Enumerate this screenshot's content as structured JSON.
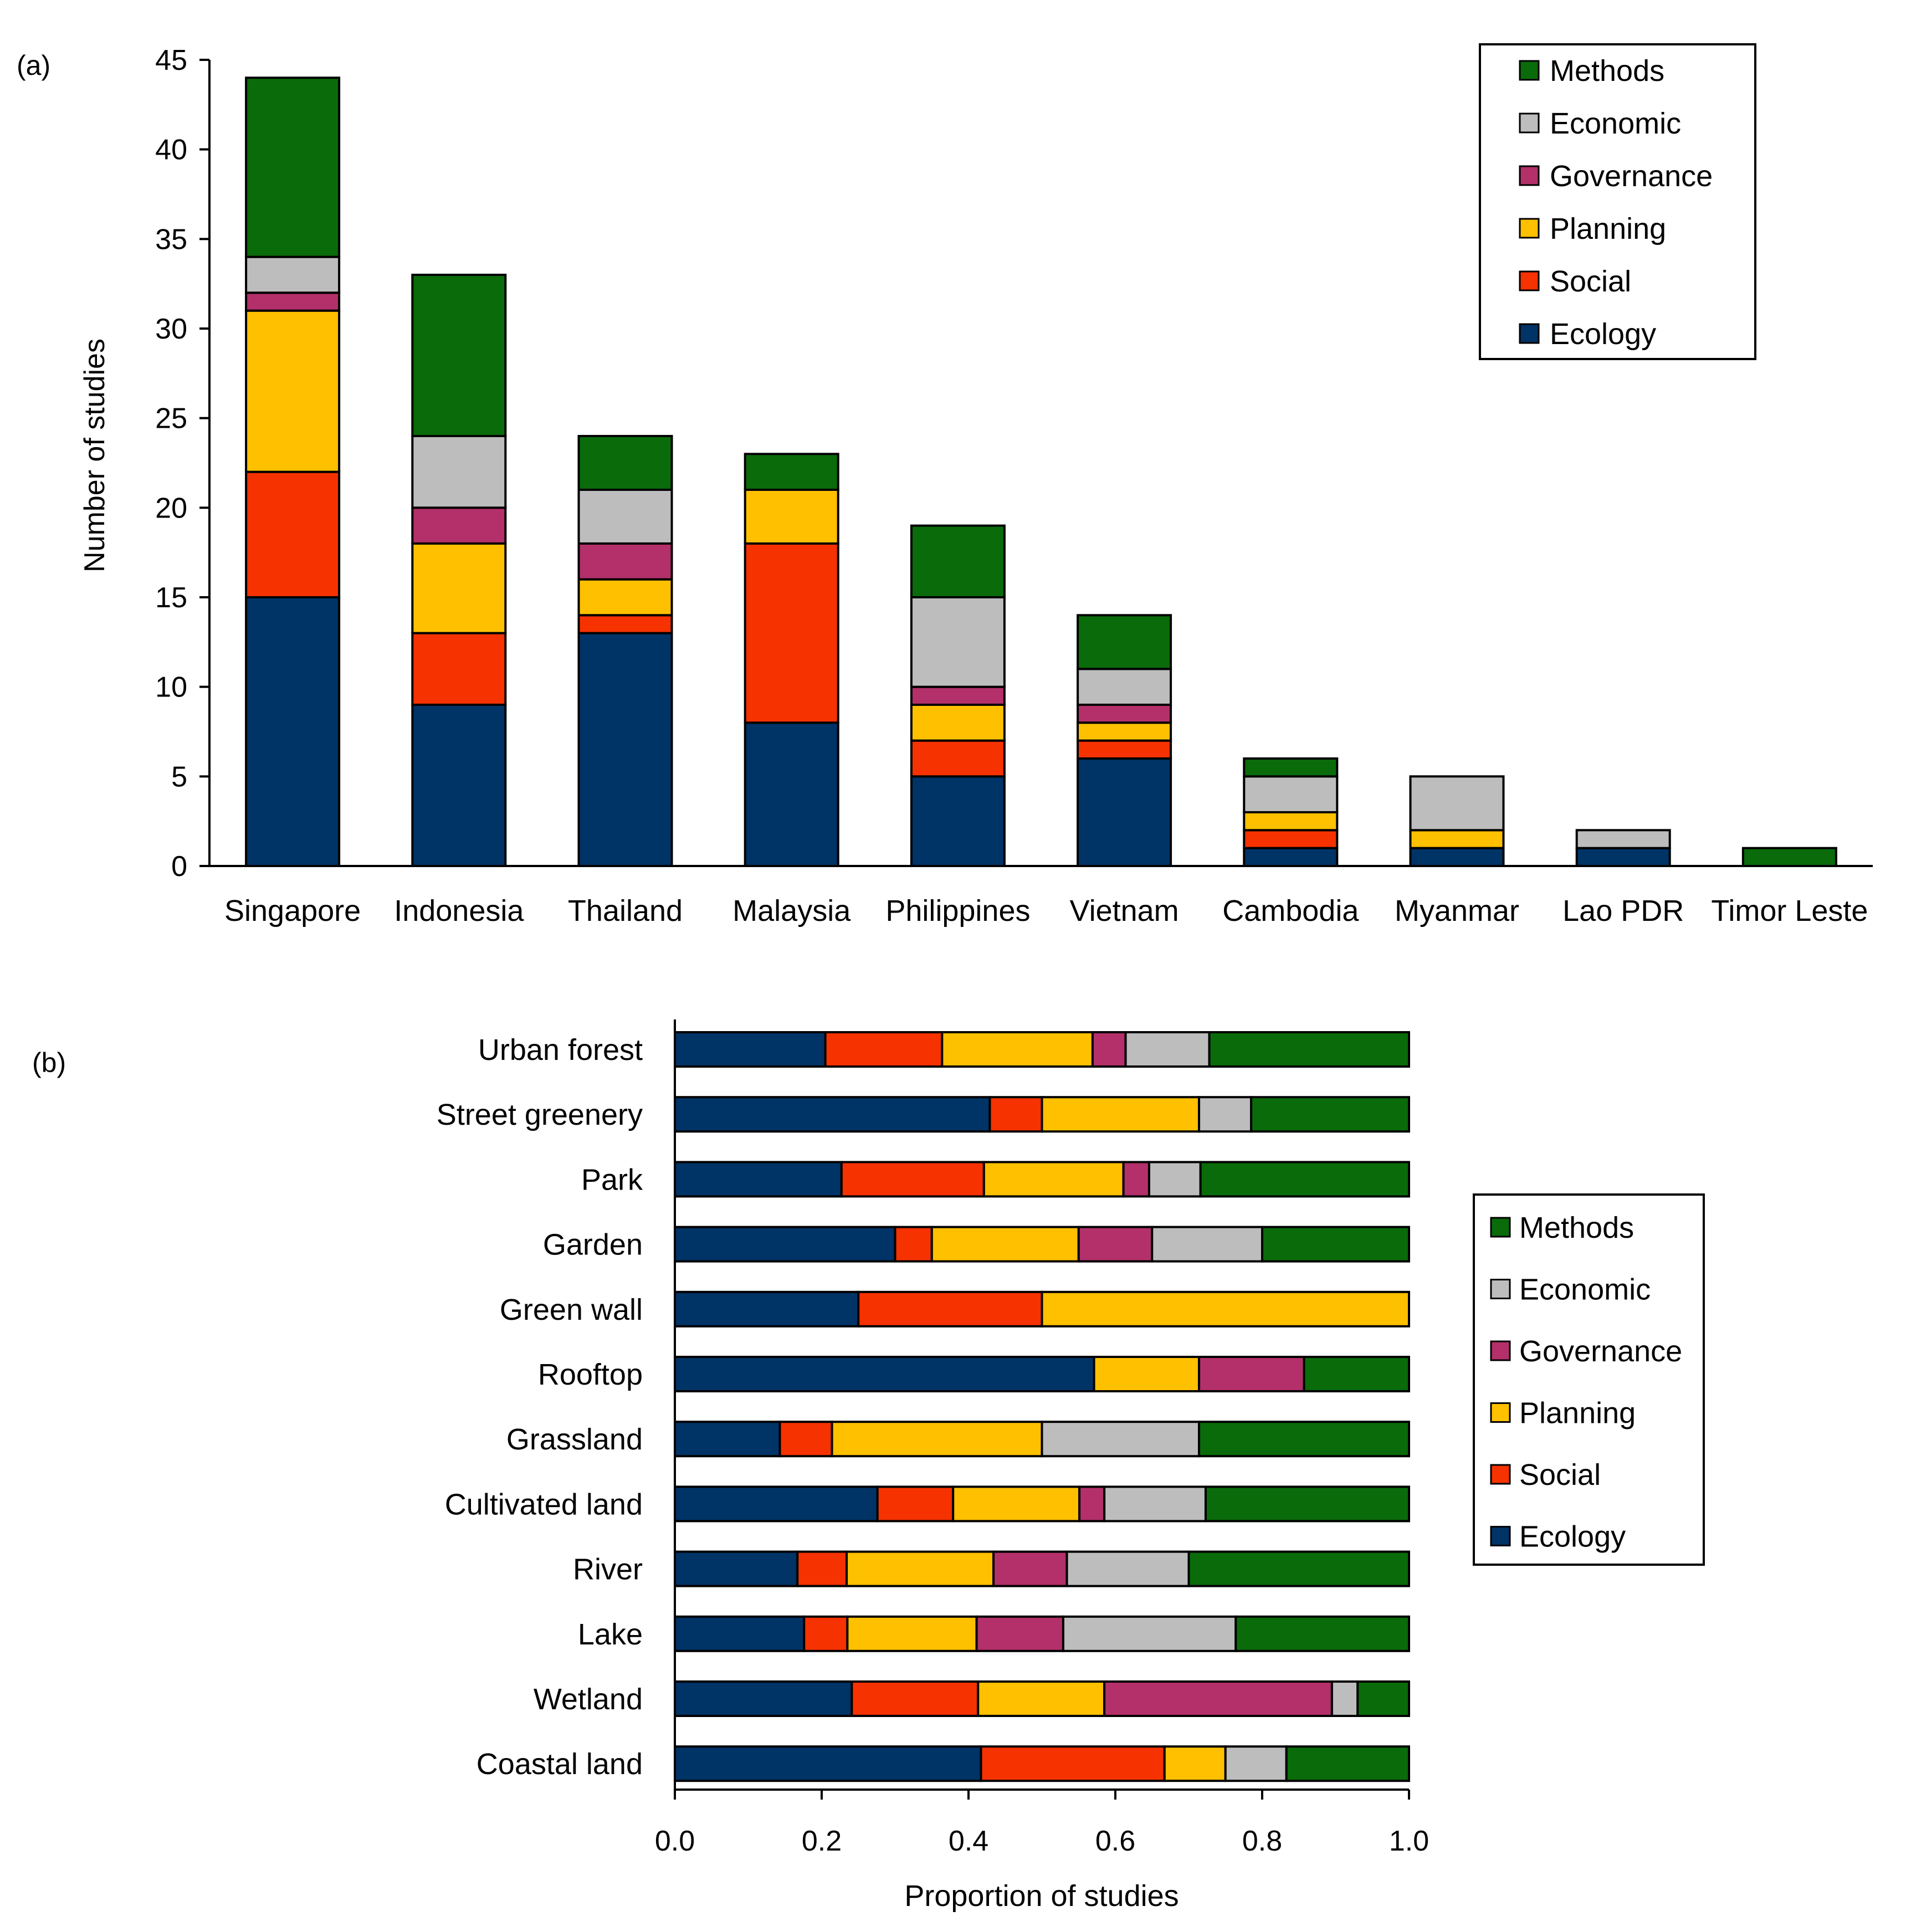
{
  "colors": {
    "Methods": "#0a6b0a",
    "Economic": "#bdbdbd",
    "Governance": "#b3306a",
    "Planning": "#ffc000",
    "Social": "#f53200",
    "Ecology": "#003366"
  },
  "chart_data": [
    {
      "type": "bar",
      "orientation": "vertical",
      "stacked": true,
      "panel_label": "(a)",
      "title": "",
      "xlabel": "",
      "ylabel": "Number of studies",
      "ylim": [
        0,
        45
      ],
      "yticks": [
        "0",
        "5",
        "10",
        "15",
        "20",
        "25",
        "30",
        "35",
        "40",
        "45"
      ],
      "categories": [
        "Singapore",
        "Indonesia",
        "Thailand",
        "Malaysia",
        "Philippines",
        "Vietnam",
        "Cambodia",
        "Myanmar",
        "Lao PDR",
        "Timor Leste"
      ],
      "series": [
        {
          "name": "Ecology",
          "values": [
            15,
            9,
            13,
            8,
            5,
            6,
            1,
            1,
            1,
            0
          ]
        },
        {
          "name": "Social",
          "values": [
            7,
            4,
            1,
            10,
            2,
            1,
            1,
            0,
            0,
            0
          ]
        },
        {
          "name": "Planning",
          "values": [
            9,
            5,
            2,
            3,
            2,
            1,
            1,
            1,
            0,
            0
          ]
        },
        {
          "name": "Governance",
          "values": [
            1,
            2,
            2,
            0,
            1,
            1,
            0,
            0,
            0,
            0
          ]
        },
        {
          "name": "Economic",
          "values": [
            2,
            4,
            3,
            0,
            5,
            2,
            2,
            3,
            1,
            0
          ]
        },
        {
          "name": "Methods",
          "values": [
            10,
            9,
            3,
            2,
            4,
            3,
            1,
            0,
            0,
            1
          ]
        }
      ],
      "legend": {
        "position": "top-right",
        "entries": [
          "Methods",
          "Economic",
          "Governance",
          "Planning",
          "Social",
          "Ecology"
        ]
      }
    },
    {
      "type": "bar",
      "orientation": "horizontal",
      "stacked": true,
      "panel_label": "(b)",
      "title": "",
      "xlabel": "Proportion of studies",
      "ylabel": "",
      "xlim": [
        0,
        1
      ],
      "xticks": [
        "0.0",
        "0.2",
        "0.4",
        "0.6",
        "0.8",
        "1.0"
      ],
      "categories": [
        "Urban forest",
        "Street greenery",
        "Park",
        "Garden",
        "Green wall",
        "Rooftop",
        "Grassland",
        "Cultivated land",
        "River",
        "Lake",
        "Wetland",
        "Coastal land"
      ],
      "series": [
        {
          "name": "Ecology",
          "values": [
            0.205,
            0.429,
            0.227,
            0.3,
            0.25,
            0.571,
            0.143,
            0.276,
            0.167,
            0.176,
            0.241,
            0.417
          ]
        },
        {
          "name": "Social",
          "values": [
            0.159,
            0.071,
            0.194,
            0.05,
            0.25,
            0.0,
            0.071,
            0.103,
            0.067,
            0.059,
            0.172,
            0.25
          ]
        },
        {
          "name": "Planning",
          "values": [
            0.205,
            0.214,
            0.19,
            0.2,
            0.5,
            0.143,
            0.286,
            0.172,
            0.2,
            0.176,
            0.172,
            0.083
          ]
        },
        {
          "name": "Governance",
          "values": [
            0.045,
            0.0,
            0.035,
            0.1,
            0.0,
            0.143,
            0.0,
            0.034,
            0.1,
            0.118,
            0.31,
            0.0
          ]
        },
        {
          "name": "Economic",
          "values": [
            0.114,
            0.071,
            0.07,
            0.15,
            0.0,
            0.0,
            0.214,
            0.138,
            0.166,
            0.235,
            0.035,
            0.083
          ]
        },
        {
          "name": "Methods",
          "values": [
            0.272,
            0.215,
            0.284,
            0.2,
            0.0,
            0.143,
            0.286,
            0.277,
            0.3,
            0.236,
            0.07,
            0.167
          ]
        }
      ],
      "legend": {
        "position": "right",
        "entries": [
          "Methods",
          "Economic",
          "Governance",
          "Planning",
          "Social",
          "Ecology"
        ]
      }
    }
  ]
}
